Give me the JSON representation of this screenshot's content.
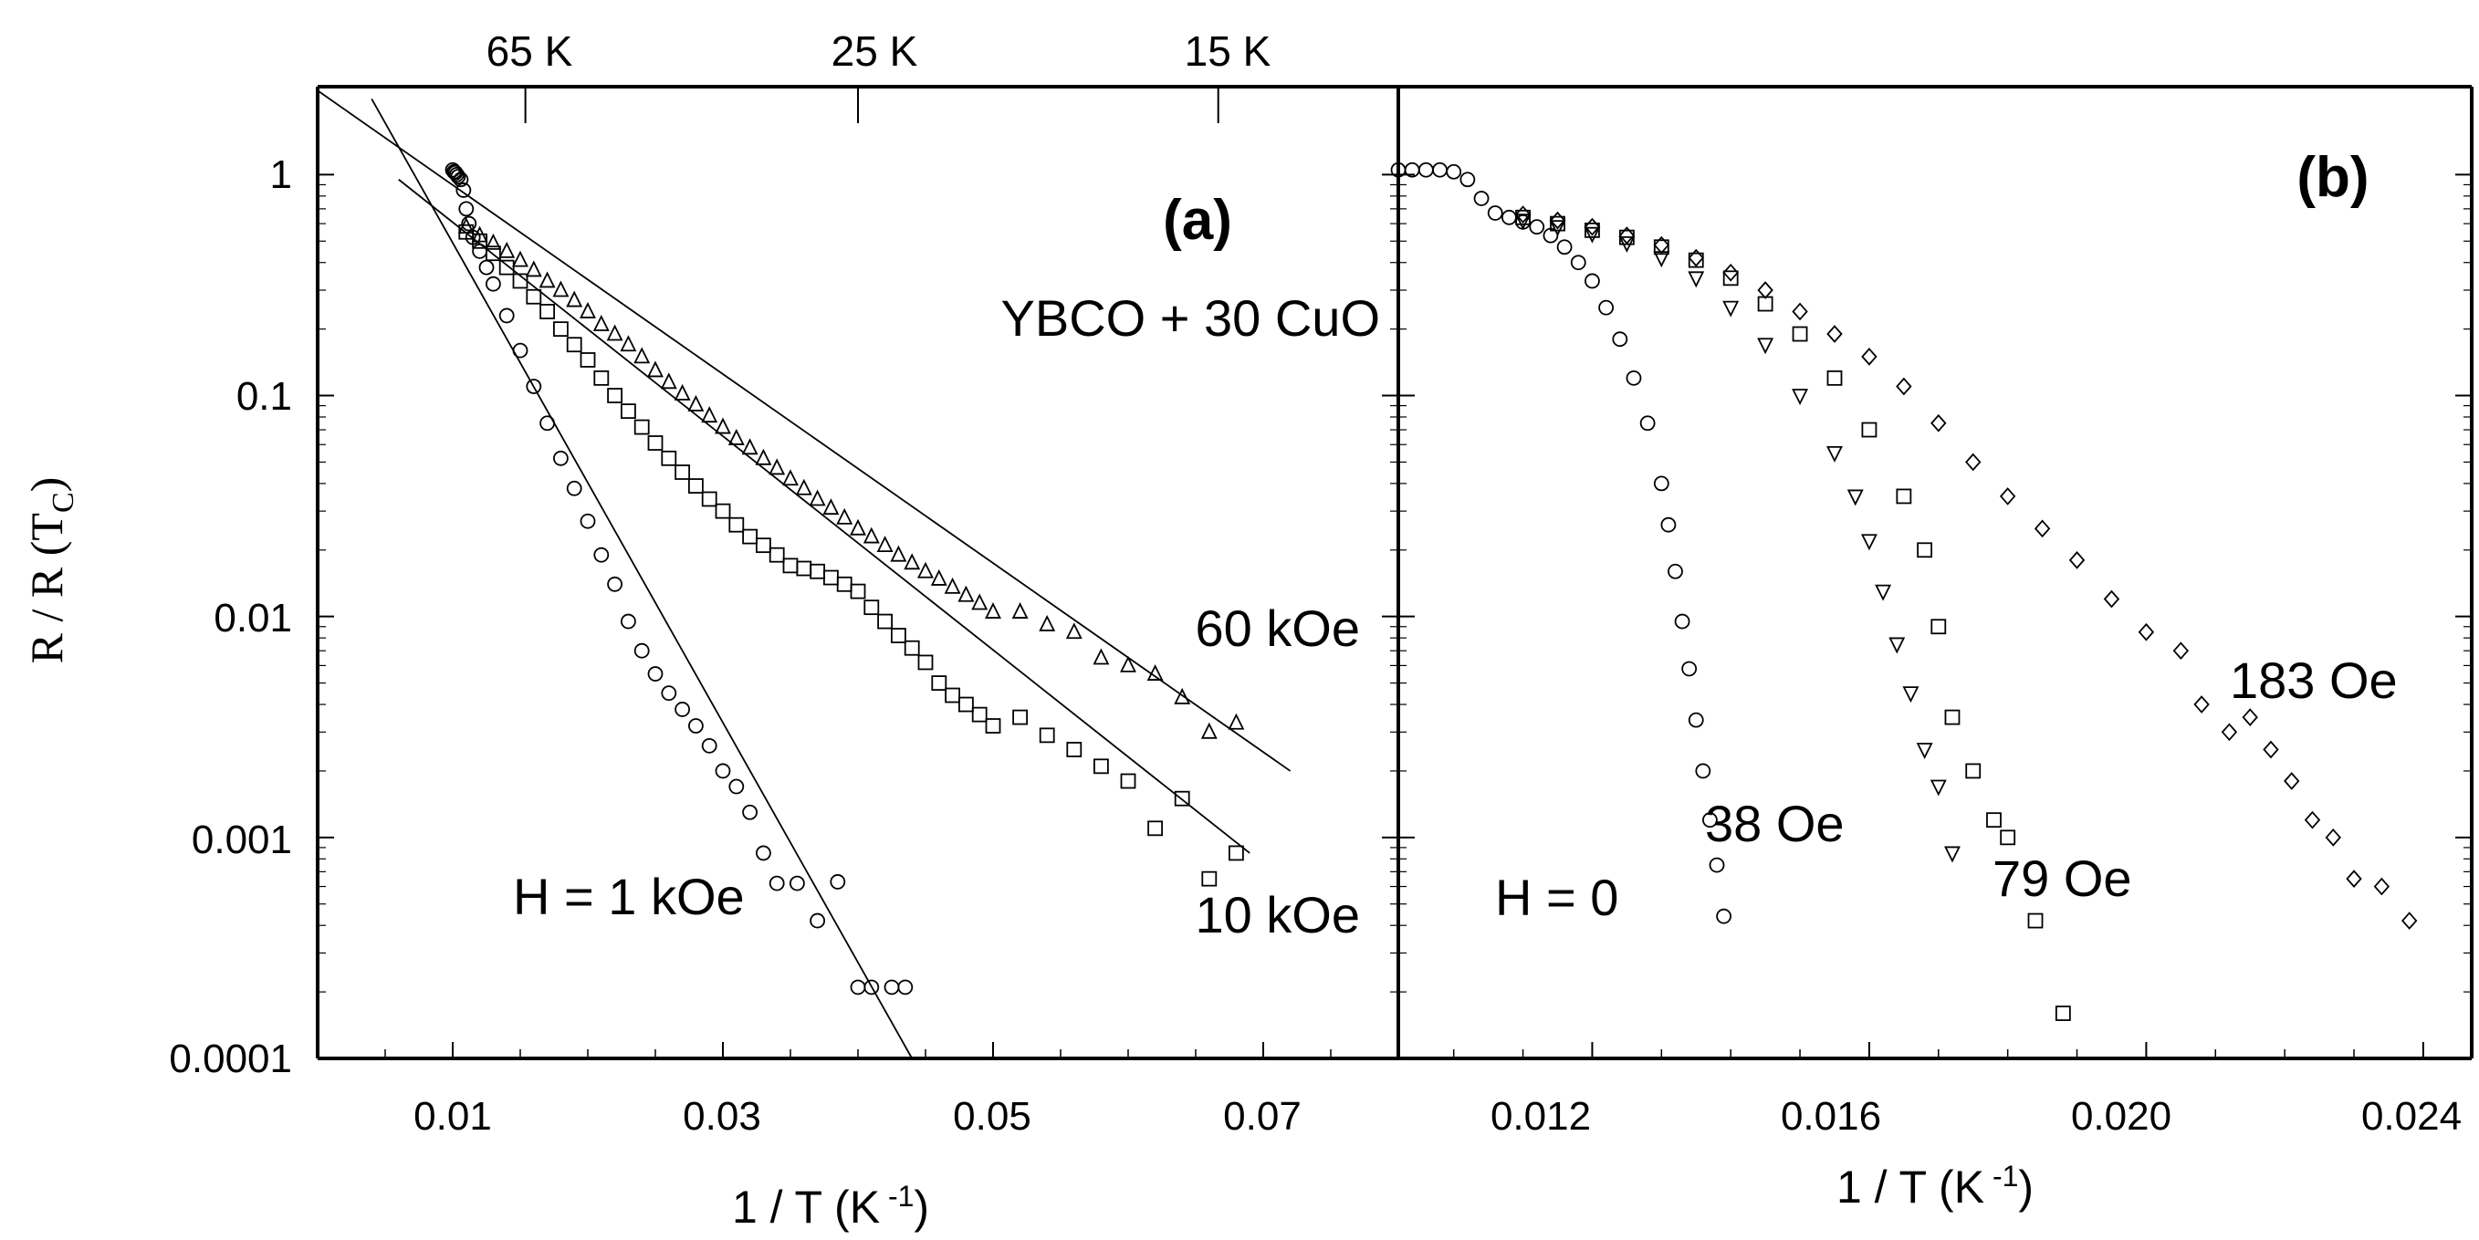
{
  "figure": {
    "ylabel_main": "R / R (T",
    "ylabel_sub": "C",
    "ylabel_close": ")",
    "top_axis": {
      "ticks": [
        "65 K",
        "25 K",
        "15 K"
      ],
      "inverse_x": [
        0.01538,
        0.04,
        0.06667
      ]
    }
  },
  "chart_data": [
    {
      "type": "scatter",
      "panel": "(a)",
      "title": "YBCO + 30 CuO",
      "xlabel": "1 / T (K",
      "xlabel_sup": " -1",
      "xlabel_close": ")",
      "ylabel": "R / R (TC)",
      "xlim": [
        0.0,
        0.08
      ],
      "ylim": [
        0.0001,
        2.5
      ],
      "yscale": "log",
      "x_ticks": [
        0.01,
        0.03,
        0.05,
        0.07
      ],
      "x_tick_labels": [
        "0.01",
        "0.03",
        "0.05",
        "0.07"
      ],
      "y_ticks": [
        1,
        0.1,
        0.01,
        0.001,
        0.0001
      ],
      "y_tick_labels": [
        "1",
        "0.1",
        "0.01",
        "0.001",
        "0.0001"
      ],
      "series": [
        {
          "name": "H = 1 kOe",
          "marker": "circle",
          "x": [
            0.01,
            0.0101,
            0.0102,
            0.0103,
            0.0104,
            0.0106,
            0.0108,
            0.011,
            0.0112,
            0.0115,
            0.012,
            0.0125,
            0.013,
            0.014,
            0.015,
            0.016,
            0.017,
            0.018,
            0.019,
            0.02,
            0.021,
            0.022,
            0.023,
            0.024,
            0.025,
            0.026,
            0.027,
            0.028,
            0.029,
            0.03,
            0.031,
            0.032,
            0.033,
            0.034,
            0.0355,
            0.037,
            0.0385,
            0.04,
            0.041,
            0.0425,
            0.0435
          ],
          "y": [
            1.05,
            1.03,
            1.02,
            1.0,
            0.98,
            0.95,
            0.85,
            0.7,
            0.6,
            0.52,
            0.45,
            0.38,
            0.32,
            0.23,
            0.16,
            0.11,
            0.075,
            0.052,
            0.038,
            0.027,
            0.019,
            0.014,
            0.0095,
            0.007,
            0.0055,
            0.0045,
            0.0038,
            0.0032,
            0.0026,
            0.002,
            0.0017,
            0.0013,
            0.00085,
            0.00062,
            0.00062,
            0.00042,
            0.00063,
            0.00021,
            0.00021,
            0.00021,
            0.00021
          ]
        },
        {
          "name": "10 kOe",
          "marker": "square",
          "x": [
            0.011,
            0.012,
            0.013,
            0.014,
            0.015,
            0.016,
            0.017,
            0.018,
            0.019,
            0.02,
            0.021,
            0.022,
            0.023,
            0.024,
            0.025,
            0.026,
            0.027,
            0.028,
            0.029,
            0.03,
            0.031,
            0.032,
            0.033,
            0.034,
            0.035,
            0.036,
            0.037,
            0.038,
            0.039,
            0.04,
            0.041,
            0.042,
            0.043,
            0.044,
            0.045,
            0.046,
            0.047,
            0.048,
            0.049,
            0.05,
            0.052,
            0.054,
            0.056,
            0.058,
            0.06,
            0.062,
            0.064,
            0.066,
            0.068
          ],
          "y": [
            0.55,
            0.5,
            0.44,
            0.38,
            0.33,
            0.28,
            0.24,
            0.2,
            0.17,
            0.145,
            0.12,
            0.1,
            0.085,
            0.072,
            0.061,
            0.052,
            0.045,
            0.039,
            0.034,
            0.03,
            0.026,
            0.023,
            0.021,
            0.019,
            0.017,
            0.0165,
            0.016,
            0.015,
            0.014,
            0.013,
            0.011,
            0.0095,
            0.0082,
            0.0072,
            0.0062,
            0.005,
            0.0044,
            0.004,
            0.0036,
            0.0032,
            0.0035,
            0.0029,
            0.0025,
            0.0021,
            0.0018,
            0.0011,
            0.0015,
            0.00065,
            0.00085
          ]
        },
        {
          "name": "60 kOe",
          "marker": "triangle",
          "x": [
            0.011,
            0.012,
            0.013,
            0.014,
            0.015,
            0.016,
            0.017,
            0.018,
            0.019,
            0.02,
            0.021,
            0.022,
            0.023,
            0.024,
            0.025,
            0.026,
            0.027,
            0.028,
            0.029,
            0.03,
            0.031,
            0.032,
            0.033,
            0.034,
            0.035,
            0.036,
            0.037,
            0.038,
            0.039,
            0.04,
            0.041,
            0.042,
            0.043,
            0.044,
            0.045,
            0.046,
            0.047,
            0.048,
            0.049,
            0.05,
            0.052,
            0.054,
            0.056,
            0.058,
            0.06,
            0.062,
            0.064,
            0.066,
            0.068
          ],
          "y": [
            0.58,
            0.53,
            0.49,
            0.45,
            0.41,
            0.37,
            0.33,
            0.3,
            0.27,
            0.24,
            0.21,
            0.19,
            0.17,
            0.15,
            0.13,
            0.115,
            0.102,
            0.091,
            0.081,
            0.072,
            0.064,
            0.058,
            0.052,
            0.047,
            0.042,
            0.038,
            0.034,
            0.031,
            0.028,
            0.025,
            0.023,
            0.021,
            0.019,
            0.0175,
            0.016,
            0.0148,
            0.0136,
            0.0125,
            0.0115,
            0.0105,
            0.0105,
            0.0092,
            0.0085,
            0.0065,
            0.006,
            0.0055,
            0.0043,
            0.003,
            0.0033
          ]
        }
      ],
      "fit_lines": [
        {
          "series": "H = 1 kOe",
          "x": [
            0.004,
            0.044
          ],
          "y": [
            2.2,
            0.0001
          ]
        },
        {
          "series": "10 kOe",
          "x": [
            0.006,
            0.069
          ],
          "y": [
            0.95,
            0.00085
          ]
        },
        {
          "series": "60 kOe",
          "x": [
            0.0,
            0.072
          ],
          "y": [
            2.4,
            0.002
          ]
        }
      ],
      "annotations": [
        "(a)",
        "YBCO + 30 CuO",
        "60 kOe",
        "10 kOe",
        "H = 1 kOe"
      ]
    },
    {
      "type": "scatter",
      "panel": "(b)",
      "xlabel": "1 / T (K",
      "xlabel_sup": " -1",
      "xlabel_close": ")",
      "xlim": [
        0.0092,
        0.0247
      ],
      "ylim": [
        0.0001,
        2.5
      ],
      "yscale": "log",
      "x_ticks": [
        0.012,
        0.016,
        0.02,
        0.024
      ],
      "x_tick_labels": [
        "0.012",
        "0.016",
        "0.020",
        "0.024"
      ],
      "series": [
        {
          "name": "H = 0",
          "marker": "circle",
          "x": [
            0.0092,
            0.0094,
            0.0096,
            0.0098,
            0.01,
            0.0102,
            0.0104,
            0.0106,
            0.0108,
            0.011,
            0.0112,
            0.0114,
            0.0116,
            0.0118,
            0.012,
            0.0122,
            0.0124,
            0.0126,
            0.0128,
            0.013,
            0.0131,
            0.0132,
            0.0133,
            0.0134,
            0.0135,
            0.0136,
            0.0137,
            0.0138,
            0.0139
          ],
          "y": [
            1.05,
            1.05,
            1.05,
            1.05,
            1.03,
            0.95,
            0.78,
            0.67,
            0.64,
            0.61,
            0.58,
            0.53,
            0.47,
            0.4,
            0.33,
            0.25,
            0.18,
            0.12,
            0.075,
            0.04,
            0.026,
            0.016,
            0.0095,
            0.0058,
            0.0034,
            0.002,
            0.0012,
            0.00075,
            0.00044
          ]
        },
        {
          "name": "38 Oe",
          "marker": "triangle-down",
          "x": [
            0.011,
            0.0115,
            0.012,
            0.0125,
            0.013,
            0.0135,
            0.014,
            0.0145,
            0.015,
            0.0155,
            0.0158,
            0.016,
            0.0162,
            0.0164,
            0.0166,
            0.0168,
            0.017,
            0.0172
          ],
          "y": [
            0.62,
            0.58,
            0.54,
            0.49,
            0.42,
            0.34,
            0.25,
            0.17,
            0.1,
            0.055,
            0.035,
            0.022,
            0.013,
            0.0075,
            0.0045,
            0.0025,
            0.0017,
            0.00085
          ]
        },
        {
          "name": "79 Oe",
          "marker": "square",
          "x": [
            0.011,
            0.0115,
            0.012,
            0.0125,
            0.013,
            0.0135,
            0.014,
            0.0145,
            0.015,
            0.0155,
            0.016,
            0.0165,
            0.0168,
            0.017,
            0.0172,
            0.0175,
            0.0178,
            0.018,
            0.0184,
            0.0188
          ],
          "y": [
            0.64,
            0.6,
            0.56,
            0.52,
            0.47,
            0.41,
            0.34,
            0.26,
            0.19,
            0.12,
            0.07,
            0.035,
            0.02,
            0.009,
            0.0035,
            0.002,
            0.0012,
            0.001,
            0.00042,
            0.00016
          ]
        },
        {
          "name": "183 Oe",
          "marker": "diamond",
          "x": [
            0.011,
            0.0115,
            0.012,
            0.0125,
            0.013,
            0.0135,
            0.014,
            0.0145,
            0.015,
            0.0155,
            0.016,
            0.0165,
            0.017,
            0.0175,
            0.018,
            0.0185,
            0.019,
            0.0195,
            0.02,
            0.0205,
            0.0208,
            0.0212,
            0.0215,
            0.0218,
            0.0221,
            0.0224,
            0.0227,
            0.023,
            0.0234,
            0.0238
          ],
          "y": [
            0.66,
            0.62,
            0.58,
            0.53,
            0.48,
            0.42,
            0.36,
            0.3,
            0.24,
            0.19,
            0.15,
            0.11,
            0.075,
            0.05,
            0.035,
            0.025,
            0.018,
            0.012,
            0.0085,
            0.007,
            0.004,
            0.003,
            0.0035,
            0.0025,
            0.0018,
            0.0012,
            0.001,
            0.00065,
            0.0006,
            0.00042
          ]
        }
      ],
      "annotations": [
        "(b)",
        "183 Oe",
        "38 Oe",
        "79 Oe",
        "H = 0"
      ]
    }
  ]
}
